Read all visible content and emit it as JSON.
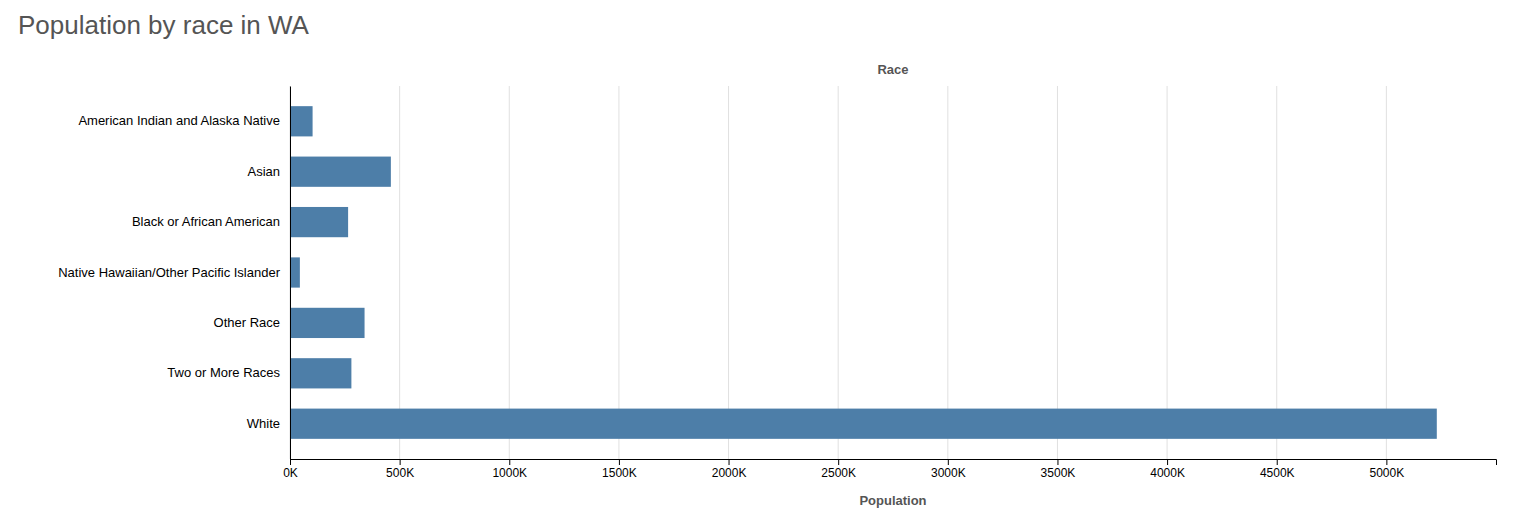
{
  "chart_data": {
    "type": "bar",
    "orientation": "horizontal",
    "title": "Population by race in WA",
    "categories": [
      "American Indian and Alaska Native",
      "Asian",
      "Black or African American",
      "Native Hawaiian/Other Pacific Islander",
      "Other Race",
      "Two or More Races",
      "White"
    ],
    "values": [
      103000,
      460000,
      265000,
      45000,
      340000,
      280000,
      5230000
    ],
    "color": "#4d7ea8",
    "xlabel": "Population",
    "ylabel": "Race",
    "xlim": [
      0,
      5500000
    ],
    "xticks": [
      {
        "value": 0,
        "label": "0K"
      },
      {
        "value": 500000,
        "label": "500K"
      },
      {
        "value": 1000000,
        "label": "1000K"
      },
      {
        "value": 1500000,
        "label": "1500K"
      },
      {
        "value": 2000000,
        "label": "2000K"
      },
      {
        "value": 2500000,
        "label": "2500K"
      },
      {
        "value": 3000000,
        "label": "3000K"
      },
      {
        "value": 3500000,
        "label": "3500K"
      },
      {
        "value": 4000000,
        "label": "4000K"
      },
      {
        "value": 4500000,
        "label": "4500K"
      },
      {
        "value": 5000000,
        "label": "5000K"
      }
    ],
    "grid": true
  }
}
